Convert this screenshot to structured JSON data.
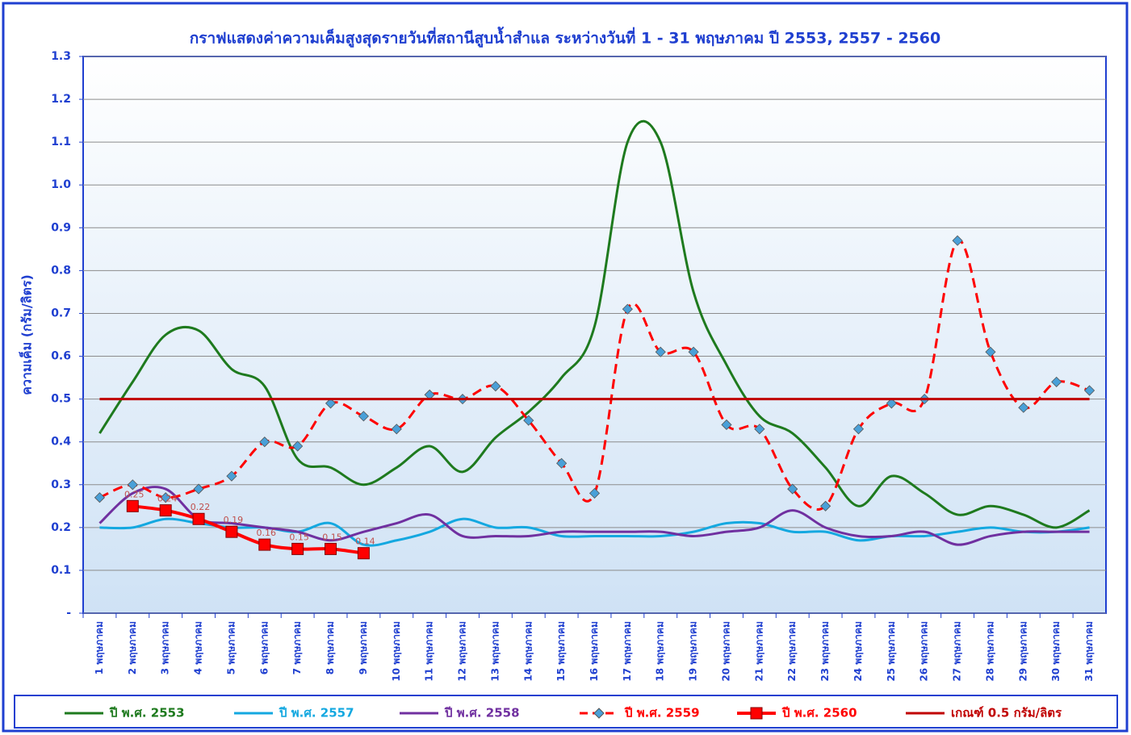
{
  "chart_data": {
    "type": "line",
    "title": "กราฟแสดงค่าความเค็มสูงสุดรายวันที่สถานีสูบน้ำสำแล ระหว่างวันที่ 1 - 31 พฤษภาคม ปี 2553, 2557 - 2560",
    "y_label": "ความเค็ม (กรัม/ลิตร)",
    "categories": [
      "1 พฤษภาคม",
      "2 พฤษภาคม",
      "3 พฤษภาคม",
      "4 พฤษภาคม",
      "5 พฤษภาคม",
      "6 พฤษภาคม",
      "7 พฤษภาคม",
      "8 พฤษภาคม",
      "9 พฤษภาคม",
      "10 พฤษภาคม",
      "11 พฤษภาคม",
      "12 พฤษภาคม",
      "13 พฤษภาคม",
      "14 พฤษภาคม",
      "15 พฤษภาคม",
      "16 พฤษภาคม",
      "17 พฤษภาคม",
      "18 พฤษภาคม",
      "19 พฤษภาคม",
      "20 พฤษภาคม",
      "21 พฤษภาคม",
      "22 พฤษภาคม",
      "23 พฤษภาคม",
      "24 พฤษภาคม",
      "25 พฤษภาคม",
      "26 พฤษภาคม",
      "27 พฤษภาคม",
      "28 พฤษภาคม",
      "29 พฤษภาคม",
      "30 พฤษภาคม",
      "31 พฤษภาคม"
    ],
    "series": [
      {
        "name": "ปี พ.ศ. 2553",
        "color": "#1e7a1e",
        "smooth": true,
        "values": [
          0.42,
          0.54,
          0.65,
          0.66,
          0.57,
          0.53,
          0.36,
          0.34,
          0.3,
          0.34,
          0.39,
          0.33,
          0.41,
          0.47,
          0.55,
          0.67,
          1.1,
          1.1,
          0.75,
          0.58,
          0.46,
          0.42,
          0.34,
          0.25,
          0.32,
          0.28,
          0.23,
          0.25,
          0.23,
          0.2,
          0.24
        ]
      },
      {
        "name": "ปี พ.ศ. 2557",
        "color": "#14a8e0",
        "smooth": true,
        "values": [
          0.2,
          0.2,
          0.22,
          0.21,
          0.2,
          0.2,
          0.19,
          0.21,
          0.16,
          0.17,
          0.19,
          0.22,
          0.2,
          0.2,
          0.18,
          0.18,
          0.18,
          0.18,
          0.19,
          0.21,
          0.21,
          0.19,
          0.19,
          0.17,
          0.18,
          0.18,
          0.19,
          0.2,
          0.19,
          0.19,
          0.2
        ]
      },
      {
        "name": "ปี พ.ศ. 2558",
        "color": "#7030a0",
        "smooth": true,
        "values": [
          0.21,
          0.28,
          0.29,
          0.22,
          0.21,
          0.2,
          0.19,
          0.17,
          0.19,
          0.21,
          0.23,
          0.18,
          0.18,
          0.18,
          0.19,
          0.19,
          0.19,
          0.19,
          0.18,
          0.19,
          0.2,
          0.24,
          0.2,
          0.18,
          0.18,
          0.19,
          0.16,
          0.18,
          0.19,
          0.19,
          0.19
        ]
      },
      {
        "name": "ปี พ.ศ. 2559",
        "color": "#ff0000",
        "smooth": true,
        "dashed": true,
        "marker": "diamond",
        "marker_color": "#4aa0d8",
        "values": [
          0.27,
          0.3,
          0.27,
          0.29,
          0.32,
          0.4,
          0.39,
          0.49,
          0.46,
          0.43,
          0.51,
          0.5,
          0.53,
          0.45,
          0.35,
          0.28,
          0.71,
          0.61,
          0.61,
          0.44,
          0.43,
          0.29,
          0.25,
          0.43,
          0.49,
          0.5,
          0.87,
          0.61,
          0.48,
          0.54,
          0.52
        ]
      },
      {
        "name": "ปี พ.ศ. 2560",
        "color": "#ff0000",
        "smooth": true,
        "marker": "square",
        "marker_color": "#ff0000",
        "data_labels": true,
        "values": [
          null,
          0.25,
          0.24,
          0.22,
          0.19,
          0.16,
          0.15,
          0.15,
          0.14,
          null,
          null,
          null,
          null,
          null,
          null,
          null,
          null,
          null,
          null,
          null,
          null,
          null,
          null,
          null,
          null,
          null,
          null,
          null,
          null,
          null,
          null
        ]
      },
      {
        "name": "เกณฑ์ 0.5 กรัม/ลิตร",
        "color": "#c00000",
        "smooth": false,
        "values": [
          0.5,
          0.5,
          0.5,
          0.5,
          0.5,
          0.5,
          0.5,
          0.5,
          0.5,
          0.5,
          0.5,
          0.5,
          0.5,
          0.5,
          0.5,
          0.5,
          0.5,
          0.5,
          0.5,
          0.5,
          0.5,
          0.5,
          0.5,
          0.5,
          0.5,
          0.5,
          0.5,
          0.5,
          0.5,
          0.5,
          0.5
        ]
      }
    ],
    "ylim": [
      0,
      1.3
    ],
    "yticks": [
      {
        "value": 0,
        "label": "-"
      },
      0.1,
      0.2,
      0.3,
      0.4,
      0.5,
      0.6,
      0.7,
      0.8,
      0.9,
      {
        "value": 1,
        "label": "1.0"
      },
      1.1,
      1.2,
      1.3
    ],
    "grid": true,
    "legend": "bottom"
  }
}
